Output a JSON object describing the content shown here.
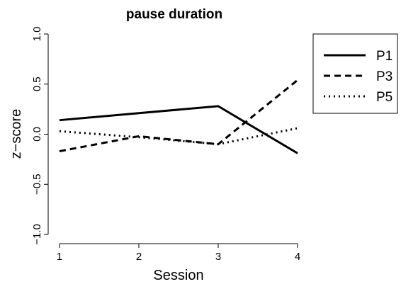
{
  "chart_data": {
    "type": "line",
    "title": "pause duration",
    "xlabel": "Session",
    "ylabel": "z−score",
    "x": [
      1,
      2,
      3,
      4
    ],
    "xticks": [
      "1",
      "2",
      "3",
      "4"
    ],
    "yticks": [
      "−1.0",
      "−0.5",
      "0.0",
      "0.5",
      "1.0"
    ],
    "ylim": [
      -1.0,
      1.0
    ],
    "xlim": [
      1,
      4
    ],
    "grid": false,
    "legend_position": "right",
    "series": [
      {
        "name": "P1",
        "line_style": "solid",
        "values": [
          0.14,
          0.21,
          0.28,
          -0.19
        ]
      },
      {
        "name": "P3",
        "line_style": "dashed",
        "values": [
          -0.17,
          -0.02,
          -0.1,
          0.54
        ]
      },
      {
        "name": "P5",
        "line_style": "dotted",
        "values": [
          0.03,
          -0.03,
          -0.1,
          0.06
        ]
      }
    ]
  }
}
